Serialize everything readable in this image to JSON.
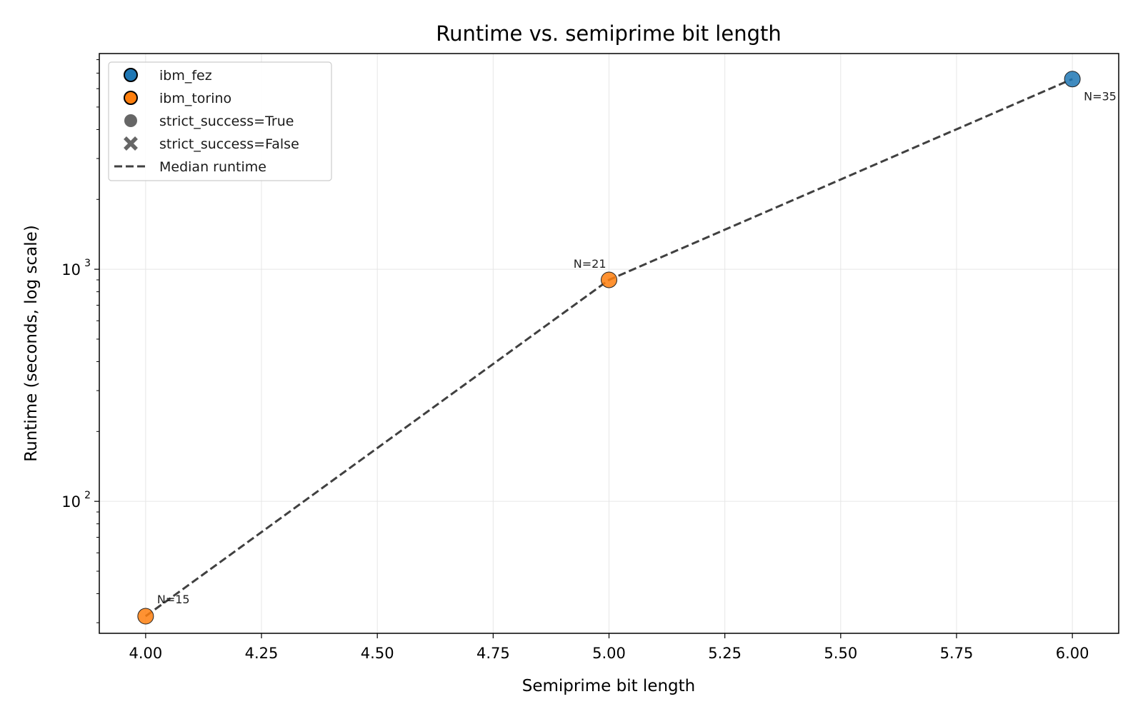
{
  "chart_data": {
    "type": "scatter",
    "title": "Runtime vs. semiprime bit length",
    "xlabel": "Semiprime bit length",
    "ylabel": "Runtime (seconds, log scale)",
    "xlim": [
      3.9,
      6.1
    ],
    "ylim": [
      27,
      8500
    ],
    "yscale": "log",
    "grid": true,
    "legend_position": "top-left",
    "xticks": [
      "4.00",
      "4.25",
      "4.50",
      "4.75",
      "5.00",
      "5.25",
      "5.50",
      "5.75",
      "6.00"
    ],
    "yticks": [
      {
        "value": 100,
        "base": "10",
        "exp": "2"
      },
      {
        "value": 1000,
        "base": "10",
        "exp": "3"
      }
    ],
    "series": [
      {
        "name": "ibm_fez",
        "color": "#1f77b4",
        "points": [
          {
            "x": 6,
            "y": 6600,
            "label": "N=35",
            "strict_success": true
          }
        ]
      },
      {
        "name": "ibm_torino",
        "color": "#ff7f0e",
        "points": [
          {
            "x": 4,
            "y": 32,
            "label": "N=15",
            "strict_success": true
          },
          {
            "x": 5,
            "y": 900,
            "label": "N=21",
            "strict_success": true
          }
        ]
      }
    ],
    "median_line": {
      "name": "Median runtime",
      "color": "#404040",
      "points": [
        {
          "x": 4,
          "y": 32
        },
        {
          "x": 5,
          "y": 900
        },
        {
          "x": 6,
          "y": 6600
        }
      ]
    },
    "legend": [
      {
        "label": "ibm_fez",
        "marker": "circle",
        "color": "#1f77b4"
      },
      {
        "label": "ibm_torino",
        "marker": "circle",
        "color": "#ff7f0e"
      },
      {
        "label": "strict_success=True",
        "marker": "circle",
        "color": "#666666"
      },
      {
        "label": "strict_success=False",
        "marker": "x",
        "color": "#666666"
      },
      {
        "label": "Median runtime",
        "marker": "dashed-line",
        "color": "#404040"
      }
    ]
  }
}
